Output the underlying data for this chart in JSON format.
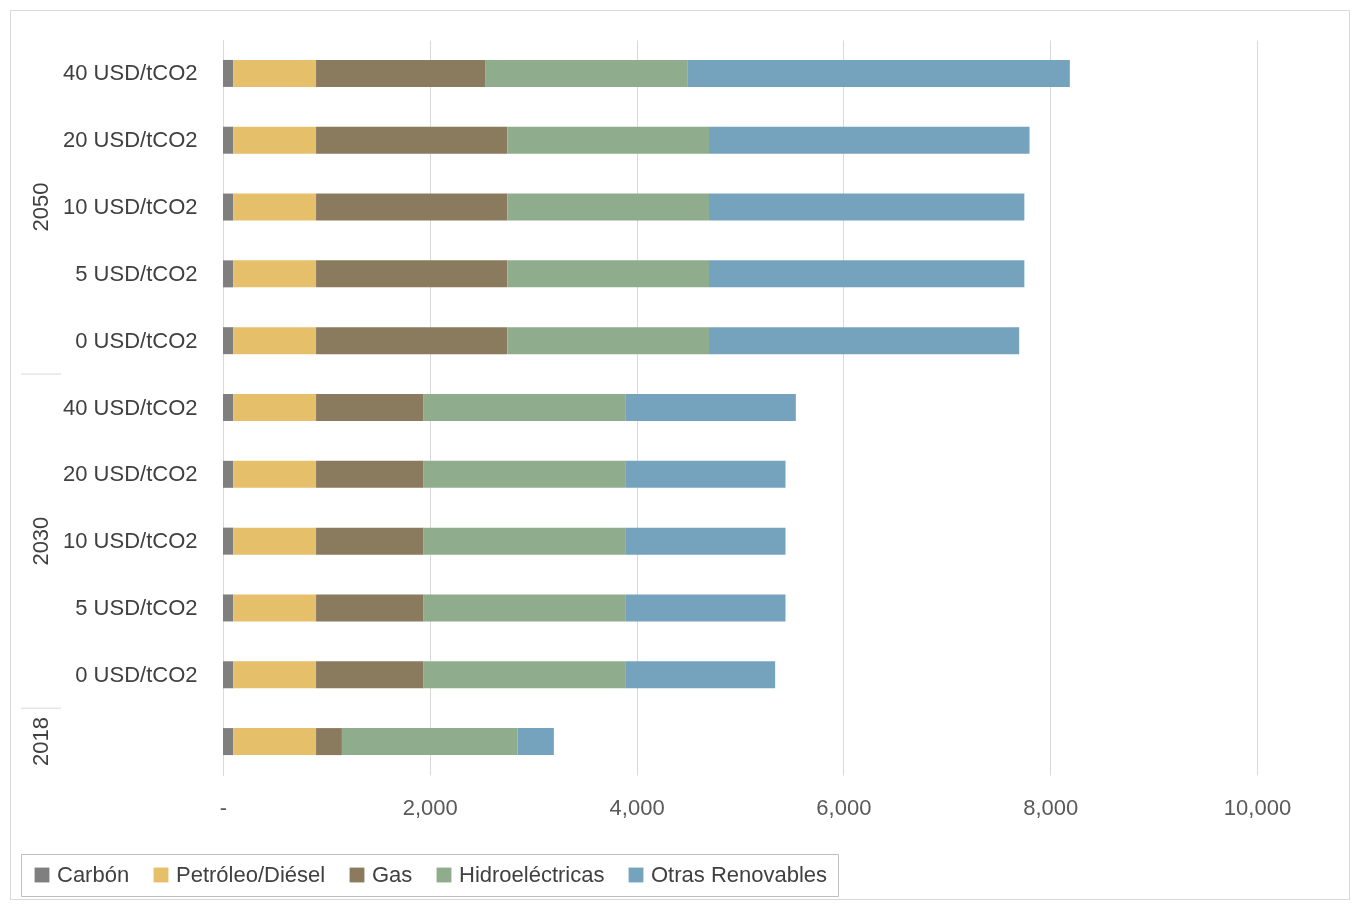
{
  "chart_data": {
    "type": "bar",
    "orientation": "horizontal",
    "stacked": true,
    "categories": [
      "40 USD/tCO2",
      "20 USD/tCO2",
      "10 USD/tCO2",
      "5 USD/tCO2",
      "0 USD/tCO2",
      "40 USD/tCO2",
      "20 USD/tCO2",
      "10 USD/tCO2",
      "5 USD/tCO2",
      "0 USD/tCO2",
      null
    ],
    "annotations": [
      "2050",
      "2030",
      "2018"
    ],
    "series": [
      {
        "name": "Carbón",
        "color": "#7f7f7f",
        "values": [
          100,
          100,
          100,
          100,
          100,
          100,
          100,
          100,
          100,
          100,
          100
        ]
      },
      {
        "name": "Petróleo/Diésel",
        "color": "#e6bf6b",
        "values": [
          800,
          800,
          800,
          800,
          800,
          800,
          800,
          800,
          800,
          800,
          800
        ]
      },
      {
        "name": "Gas",
        "color": "#8a7a5e",
        "values": [
          1640,
          1850,
          1850,
          1850,
          1850,
          1040,
          1040,
          1040,
          1040,
          1040,
          250
        ]
      },
      {
        "name": "Hidroeléctricas",
        "color": "#8fac8c",
        "values": [
          1950,
          1950,
          1950,
          1950,
          1950,
          1950,
          1950,
          1950,
          1950,
          1950,
          1700
        ]
      },
      {
        "name": "Otras Renovables",
        "color": "#75a3bd",
        "values": [
          3700,
          3100,
          3050,
          3050,
          3000,
          1650,
          1550,
          1550,
          1550,
          1450,
          350
        ]
      }
    ],
    "xlim": [
      0,
      10000
    ],
    "xticks": [
      {
        "value": 0,
        "label": "-"
      },
      {
        "value": 2000,
        "label": "2,000"
      },
      {
        "value": 4000,
        "label": "4,000"
      },
      {
        "value": 6000,
        "label": "6,000"
      },
      {
        "value": 8000,
        "label": "8,000"
      },
      {
        "value": 10000,
        "label": "10,000"
      }
    ],
    "grid": "x",
    "legend": "bottom"
  }
}
